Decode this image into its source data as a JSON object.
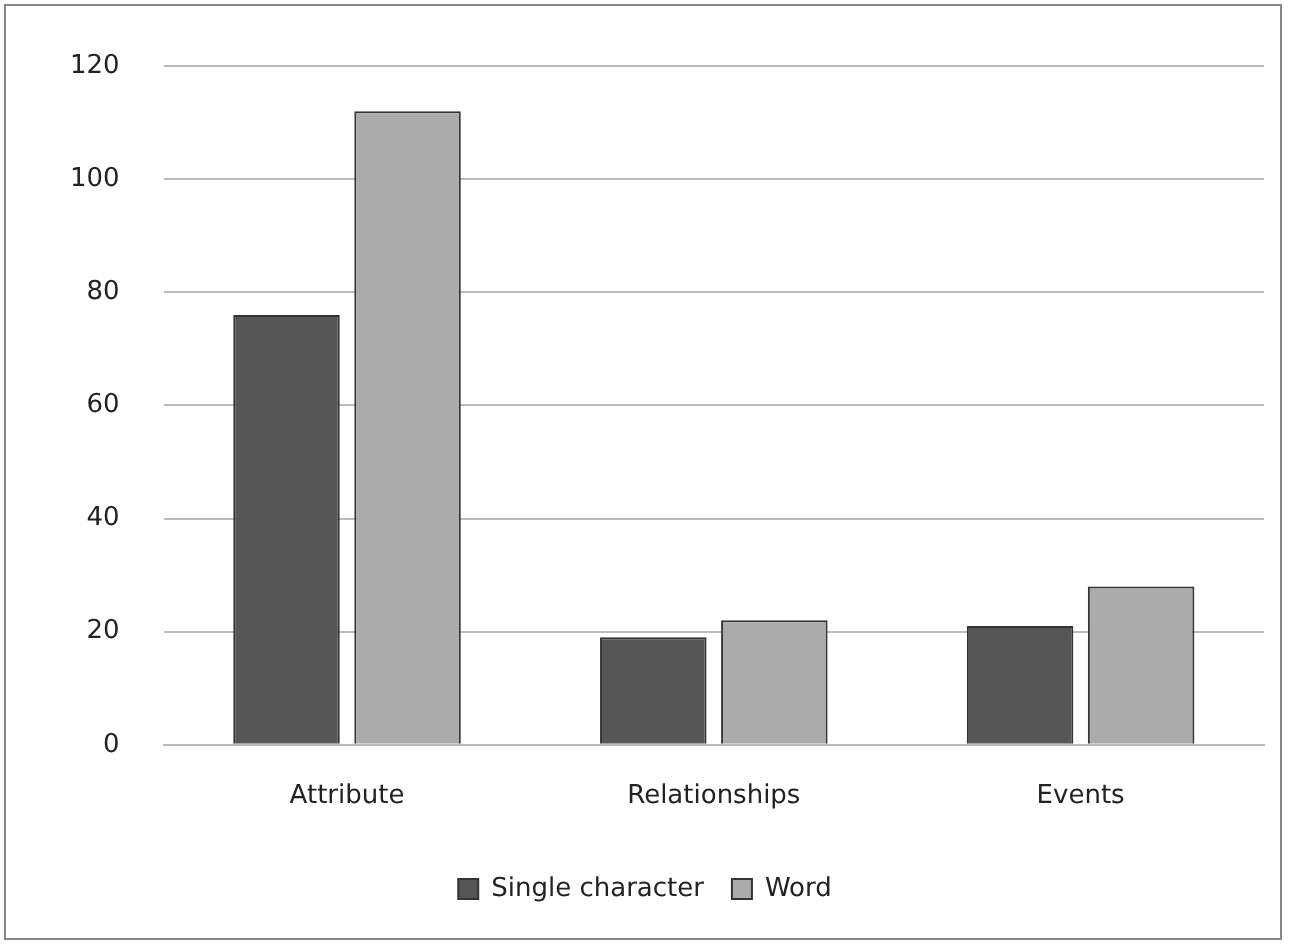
{
  "chart_data": {
    "type": "bar",
    "categories": [
      "Attribute",
      "Relationships",
      "Events"
    ],
    "series": [
      {
        "name": "Single character",
        "color": "#565656",
        "values": [
          76,
          19,
          21
        ]
      },
      {
        "name": "Word",
        "color": "#ababab",
        "values": [
          112,
          22,
          28
        ]
      }
    ],
    "ylim": [
      0,
      120
    ],
    "yticks": [
      0,
      20,
      40,
      60,
      80,
      100,
      120
    ],
    "grid": "y",
    "legend": "bottom"
  }
}
